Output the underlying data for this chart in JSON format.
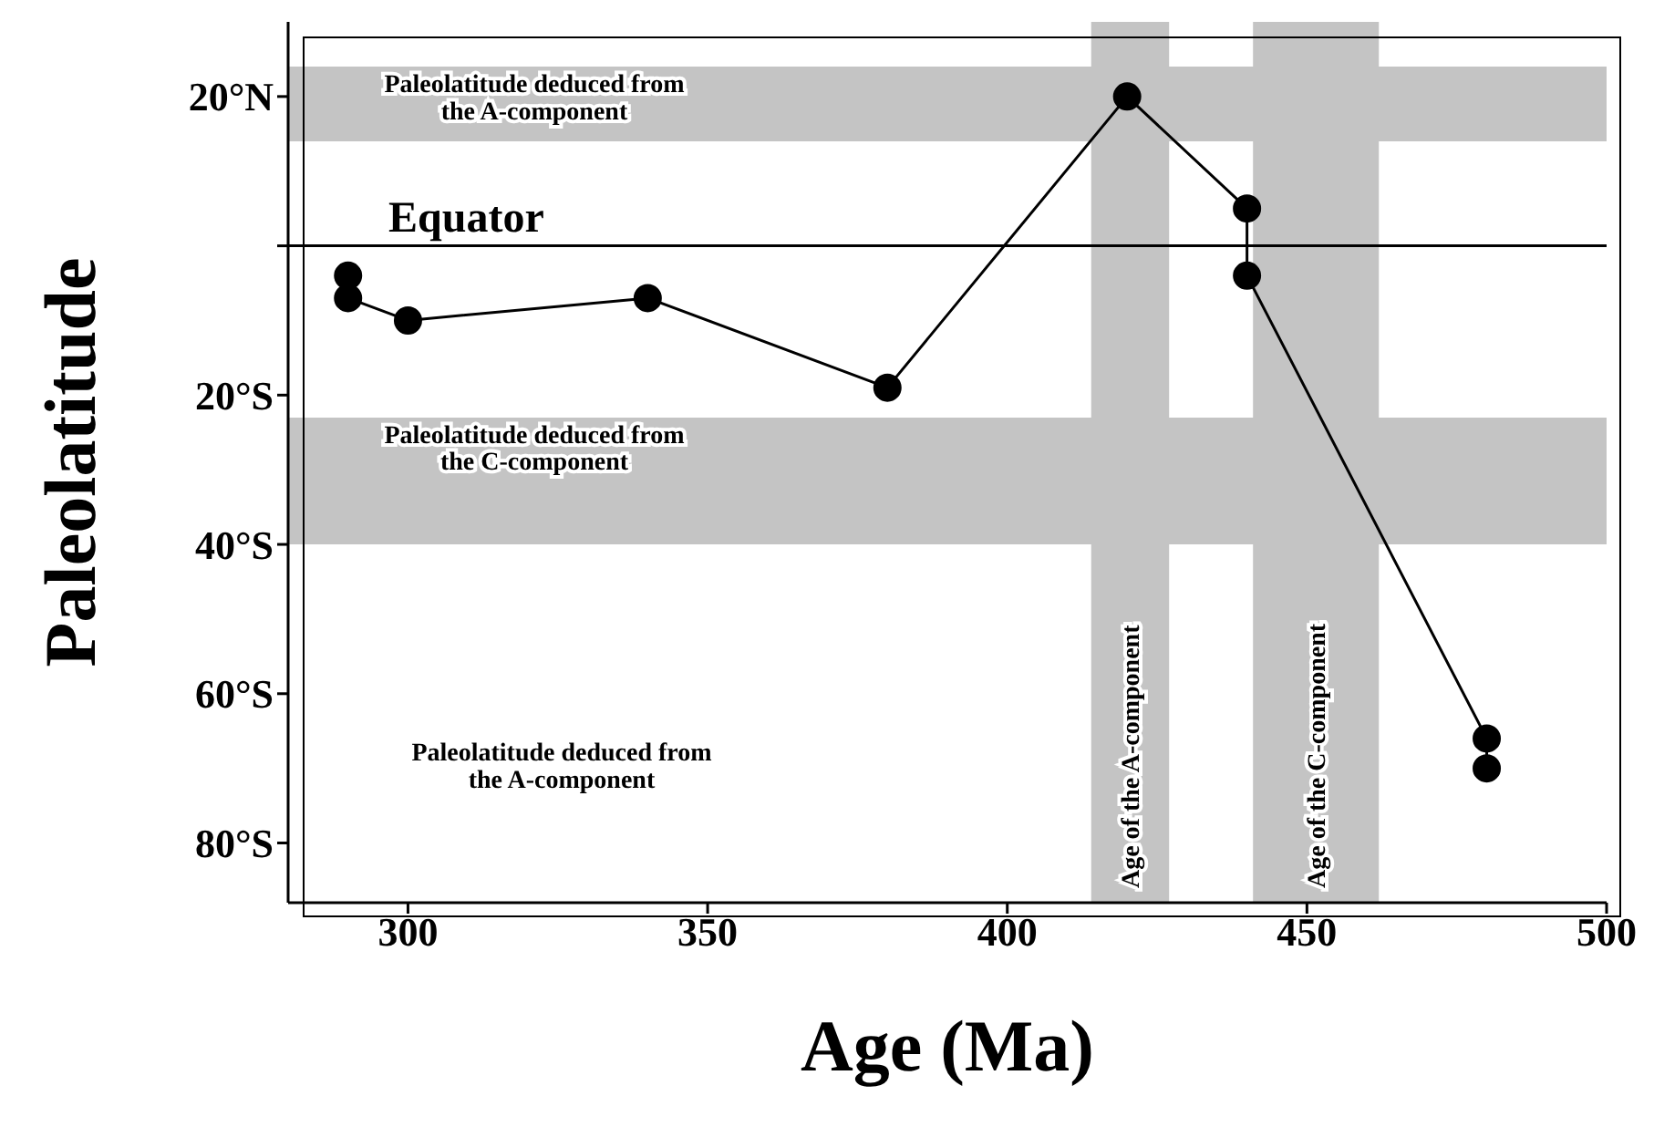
{
  "chart_data": {
    "type": "line",
    "xlabel": "Age (Ma)",
    "ylabel": "Paleolatitude",
    "x": [
      290,
      290,
      300,
      340,
      380,
      420,
      440,
      440,
      480,
      480
    ],
    "series": [
      {
        "color": "#000000",
        "values": [
          -4,
          -7,
          -10,
          -7,
          -19,
          20,
          5,
          -4,
          -66,
          -70
        ]
      }
    ],
    "xlim": [
      280,
      500
    ],
    "xticks": [
      300,
      350,
      400,
      450,
      500
    ],
    "ylim": [
      -88,
      30
    ],
    "yticks": [
      {
        "value": 20,
        "label": "20°N"
      },
      {
        "value": 0,
        "label": null
      },
      {
        "value": -20,
        "label": "20°S"
      },
      {
        "value": -40,
        "label": "40°S"
      },
      {
        "value": -60,
        "label": "60°S"
      },
      {
        "value": -80,
        "label": "80°S"
      }
    ],
    "ref_lines": [
      {
        "axis": "y",
        "value": 0,
        "label": "Equator",
        "color": "#000000"
      }
    ],
    "bands": [
      {
        "axis": "y",
        "from": 14,
        "to": 24,
        "label": "Paleolatitude deduced from\nthe A-component",
        "color": "#c4c4c4"
      },
      {
        "axis": "y",
        "from": -40,
        "to": -23,
        "label": "Paleolatitude deduced from\nthe C-component",
        "color": "#c4c4c4"
      },
      {
        "axis": "x",
        "from": 414,
        "to": 427,
        "label": "Age of the A-component",
        "color": "#c4c4c4"
      },
      {
        "axis": "x",
        "from": 441,
        "to": 462,
        "label": "Age of the C-component",
        "color": "#c4c4c4"
      }
    ],
    "annotations": [
      "Paleolatitude deduced from\nthe A-component"
    ],
    "marker": "circle",
    "line_style": "solid",
    "grid": false,
    "legend": false
  }
}
